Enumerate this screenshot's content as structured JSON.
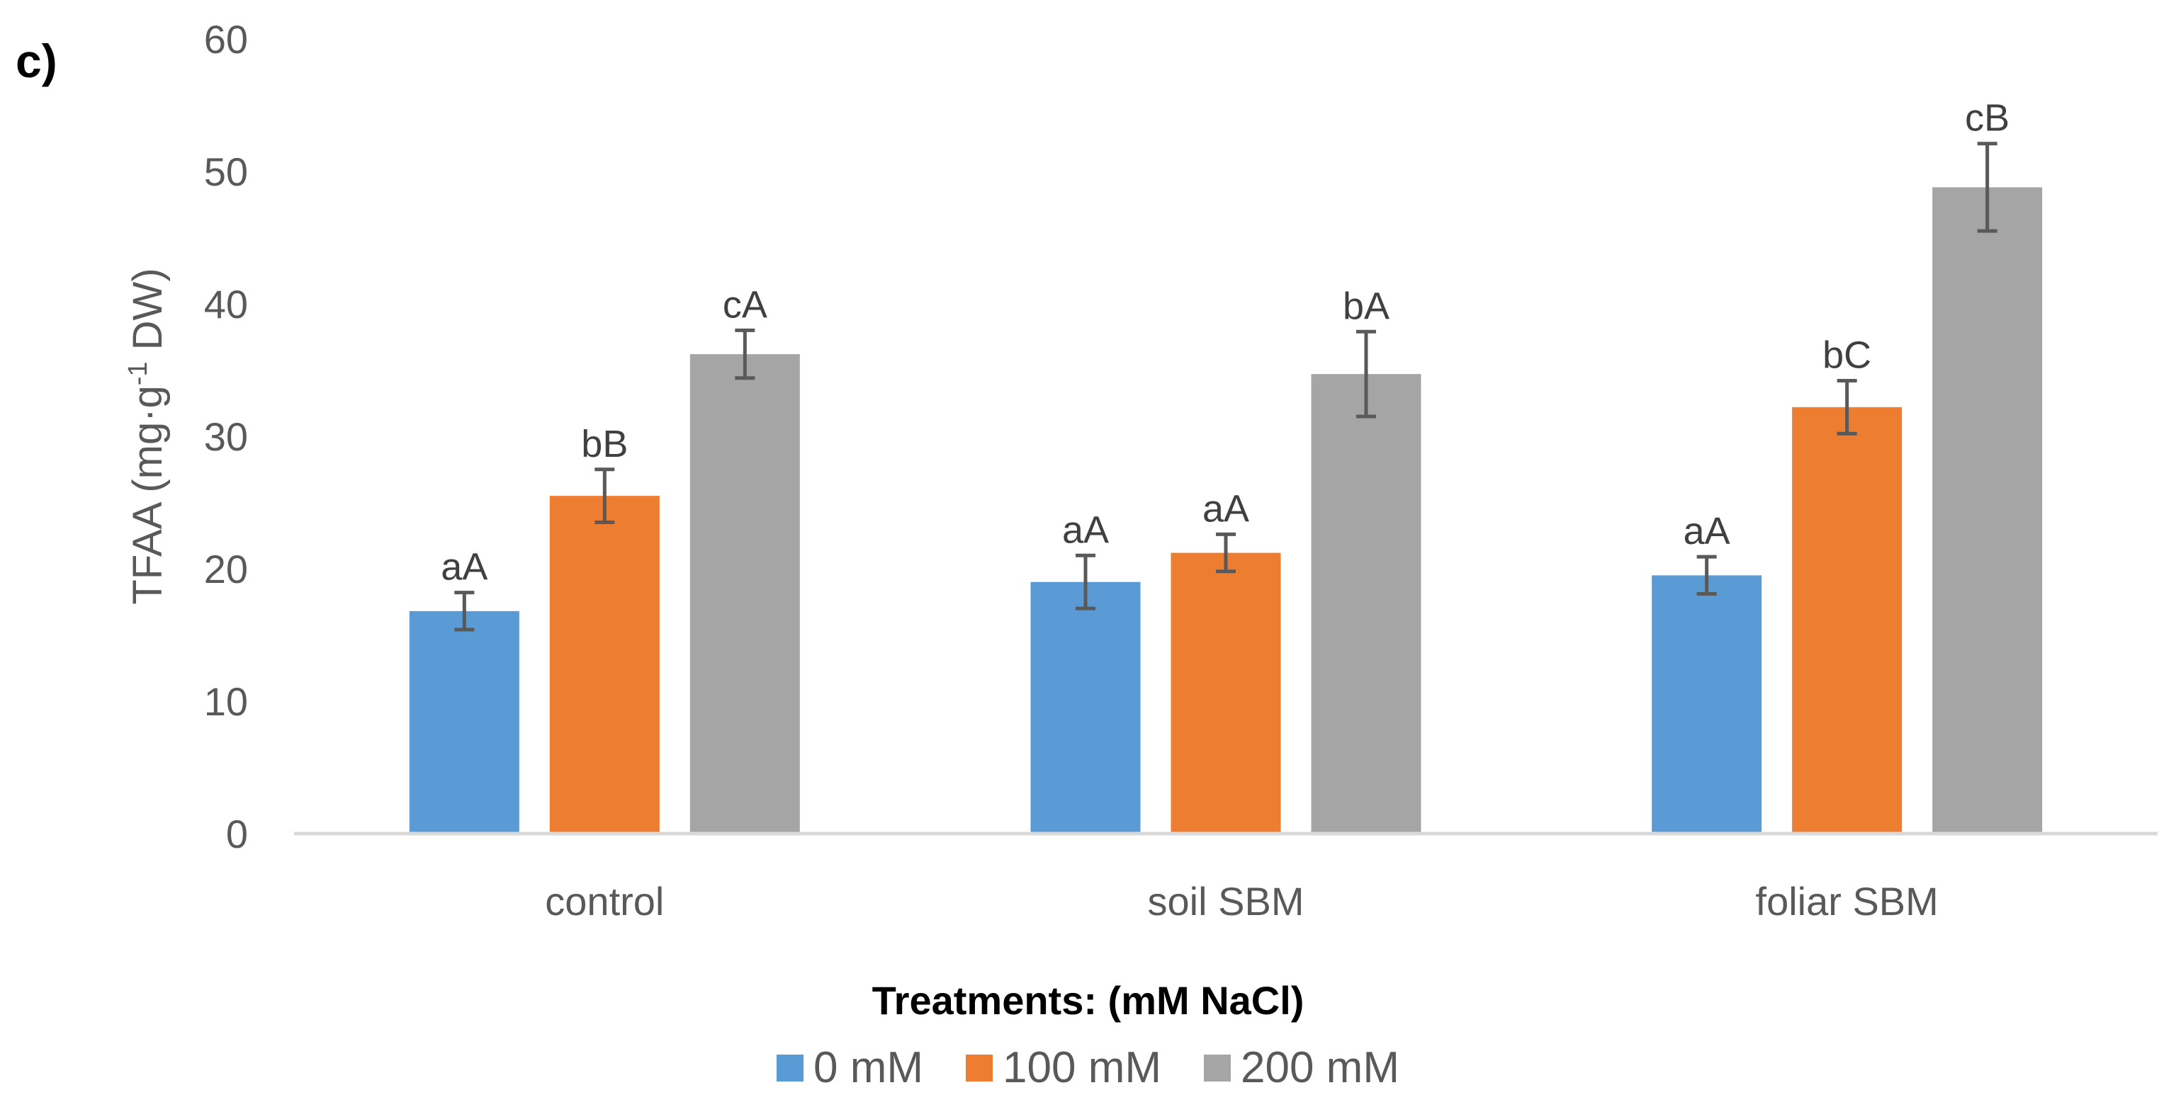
{
  "panel_label": "c)",
  "chart_data": {
    "type": "bar",
    "title": "",
    "xlabel": "Treatments: (mM NaCl)",
    "ylabel": "TFAA (mg·g-1 DW)",
    "ylabel_parts": {
      "main": "TFAA (mg·g",
      "sup": "-1",
      "rest": " DW)"
    },
    "ylim": [
      0,
      60
    ],
    "yticks": [
      0,
      10,
      20,
      30,
      40,
      50,
      60
    ],
    "grid": false,
    "legend_position": "bottom",
    "categories": [
      "control",
      "soil SBM",
      "foliar SBM"
    ],
    "series": [
      {
        "name": "0 mM",
        "color": "#5B9BD5",
        "values": [
          16.8,
          19.0,
          19.5
        ],
        "errors": [
          1.4,
          2.0,
          1.4
        ],
        "labels": [
          "aA",
          "aA",
          "aA"
        ]
      },
      {
        "name": "100 mM",
        "color": "#ED7D31",
        "values": [
          25.5,
          21.2,
          32.2
        ],
        "errors": [
          2.0,
          1.4,
          2.0
        ],
        "labels": [
          "bB",
          "aA",
          "bC"
        ]
      },
      {
        "name": "200 mM",
        "color": "#A5A5A5",
        "values": [
          36.2,
          34.7,
          48.8
        ],
        "errors": [
          1.8,
          3.2,
          3.3
        ],
        "labels": [
          "cA",
          "bA",
          "cB"
        ]
      }
    ]
  }
}
